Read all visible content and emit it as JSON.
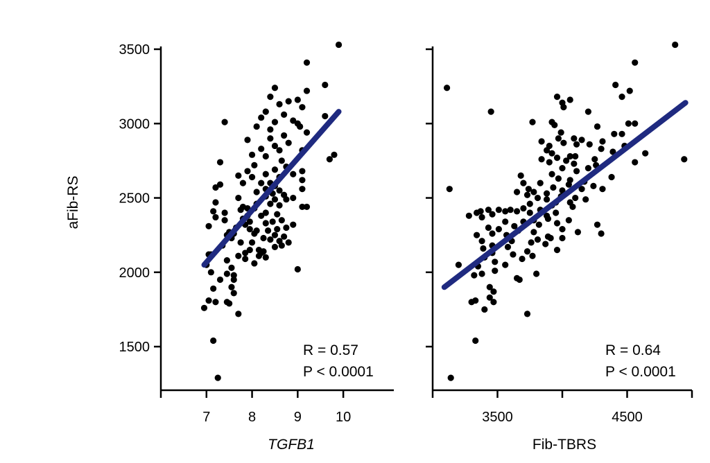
{
  "colors": {
    "points": "#000000",
    "fit_line": "#1f2a80",
    "axes": "#000000",
    "background": "#ffffff"
  },
  "shared_ylabel": "aFib-RS",
  "chart_data": [
    {
      "type": "scatter",
      "xlabel": "TGFB1",
      "xlabel_italic": true,
      "ylabel": "aFib-RS",
      "xlim": [
        6.0,
        10.5
      ],
      "ylim": [
        1200,
        3500
      ],
      "xticks": [
        6,
        7,
        8,
        9,
        10
      ],
      "xtick_labels": [
        "",
        "7",
        "8",
        "9",
        "10"
      ],
      "yticks": [
        1500,
        2000,
        2500,
        3000,
        3500
      ],
      "ytick_labels": [
        "1500",
        "2000",
        "2500",
        "3000",
        "3500"
      ],
      "grid": false,
      "stats": {
        "r": "R = 0.57",
        "p": "P < 0.0001"
      },
      "fit_line": {
        "x": [
          6.95,
          9.9
        ],
        "y": [
          2050,
          3080
        ]
      },
      "points": [
        [
          9.9,
          3530
        ],
        [
          9.2,
          3410
        ],
        [
          9.6,
          3260
        ],
        [
          9.2,
          3220
        ],
        [
          8.5,
          3240
        ],
        [
          8.4,
          3180
        ],
        [
          8.8,
          3150
        ],
        [
          9.0,
          3160
        ],
        [
          9.1,
          3110
        ],
        [
          8.6,
          3130
        ],
        [
          8.7,
          3060
        ],
        [
          8.3,
          3080
        ],
        [
          7.4,
          3010
        ],
        [
          8.2,
          3040
        ],
        [
          8.5,
          3010
        ],
        [
          8.9,
          3020
        ],
        [
          9.0,
          3000
        ],
        [
          9.6,
          3050
        ],
        [
          8.4,
          2960
        ],
        [
          8.1,
          2980
        ],
        [
          9.2,
          2940
        ],
        [
          9.05,
          2980
        ],
        [
          8.7,
          2920
        ],
        [
          7.9,
          2890
        ],
        [
          8.4,
          2900
        ],
        [
          8.8,
          2870
        ],
        [
          8.5,
          2850
        ],
        [
          8.2,
          2830
        ],
        [
          8.6,
          2820
        ],
        [
          9.1,
          2820
        ],
        [
          8.0,
          2790
        ],
        [
          8.3,
          2780
        ],
        [
          9.8,
          2790
        ],
        [
          9.7,
          2760
        ],
        [
          8.65,
          2750
        ],
        [
          7.3,
          2740
        ],
        [
          8.05,
          2720
        ],
        [
          8.75,
          2710
        ],
        [
          8.5,
          2690
        ],
        [
          9.1,
          2680
        ],
        [
          7.9,
          2680
        ],
        [
          8.3,
          2660
        ],
        [
          8.9,
          2660
        ],
        [
          7.7,
          2650
        ],
        [
          8.0,
          2640
        ],
        [
          8.6,
          2640
        ],
        [
          9.1,
          2620
        ],
        [
          8.2,
          2600
        ],
        [
          8.4,
          2600
        ],
        [
          7.8,
          2600
        ],
        [
          8.5,
          2580
        ],
        [
          8.3,
          2560
        ],
        [
          7.3,
          2590
        ],
        [
          7.2,
          2570
        ],
        [
          9.1,
          2560
        ],
        [
          8.6,
          2550
        ],
        [
          8.1,
          2540
        ],
        [
          8.45,
          2530
        ],
        [
          8.7,
          2520
        ],
        [
          8.3,
          2510
        ],
        [
          8.9,
          2500
        ],
        [
          8.5,
          2490
        ],
        [
          8.75,
          2490
        ],
        [
          7.7,
          2500
        ],
        [
          7.2,
          2470
        ],
        [
          8.1,
          2460
        ],
        [
          8.4,
          2460
        ],
        [
          8.6,
          2450
        ],
        [
          9.2,
          2440
        ],
        [
          9.1,
          2440
        ],
        [
          7.8,
          2440
        ],
        [
          7.9,
          2430
        ],
        [
          8.05,
          2430
        ],
        [
          7.75,
          2420
        ],
        [
          7.15,
          2410
        ],
        [
          7.4,
          2400
        ],
        [
          8.3,
          2400
        ],
        [
          8.55,
          2390
        ],
        [
          8.2,
          2380
        ],
        [
          7.9,
          2380
        ],
        [
          7.2,
          2370
        ],
        [
          7.8,
          2360
        ],
        [
          8.65,
          2350
        ],
        [
          7.4,
          2350
        ],
        [
          7.95,
          2340
        ],
        [
          8.45,
          2340
        ],
        [
          8.3,
          2330
        ],
        [
          7.85,
          2320
        ],
        [
          8.9,
          2320
        ],
        [
          7.05,
          2310
        ],
        [
          7.65,
          2300
        ],
        [
          8.75,
          2300
        ],
        [
          7.95,
          2290
        ],
        [
          8.55,
          2290
        ],
        [
          8.1,
          2280
        ],
        [
          8.35,
          2280
        ],
        [
          7.5,
          2270
        ],
        [
          7.6,
          2260
        ],
        [
          8.05,
          2260
        ],
        [
          7.45,
          2250
        ],
        [
          8.5,
          2250
        ],
        [
          8.7,
          2240
        ],
        [
          7.55,
          2230
        ],
        [
          8.25,
          2230
        ],
        [
          8.4,
          2220
        ],
        [
          8.6,
          2210
        ],
        [
          7.75,
          2200
        ],
        [
          8.0,
          2200
        ],
        [
          8.8,
          2200
        ],
        [
          7.35,
          2180
        ],
        [
          8.65,
          2180
        ],
        [
          8.5,
          2170
        ],
        [
          7.95,
          2150
        ],
        [
          8.15,
          2150
        ],
        [
          8.25,
          2140
        ],
        [
          7.85,
          2130
        ],
        [
          8.2,
          2130
        ],
        [
          7.05,
          2120
        ],
        [
          7.1,
          2120
        ],
        [
          7.7,
          2110
        ],
        [
          8.15,
          2110
        ],
        [
          8.3,
          2100
        ],
        [
          7.85,
          2090
        ],
        [
          7.45,
          2080
        ],
        [
          8.05,
          2060
        ],
        [
          7.0,
          2050
        ],
        [
          7.55,
          2030
        ],
        [
          9.0,
          2020
        ],
        [
          7.1,
          2000
        ],
        [
          7.45,
          1990
        ],
        [
          7.6,
          1980
        ],
        [
          7.3,
          1950
        ],
        [
          7.6,
          1950
        ],
        [
          7.15,
          1890
        ],
        [
          7.55,
          1900
        ],
        [
          7.05,
          1810
        ],
        [
          7.45,
          1800
        ],
        [
          7.5,
          1790
        ],
        [
          6.95,
          1760
        ],
        [
          7.7,
          1720
        ],
        [
          7.15,
          1540
        ],
        [
          7.25,
          1290
        ],
        [
          7.2,
          1800
        ],
        [
          7.6,
          1860
        ]
      ]
    },
    {
      "type": "scatter",
      "xlabel": "Fib-TBRS",
      "xlabel_italic": false,
      "ylabel": "",
      "xlim": [
        3000,
        5000
      ],
      "ylim": [
        1200,
        3500
      ],
      "xticks": [
        3000,
        3500,
        4000,
        4500,
        5000
      ],
      "xtick_labels": [
        "",
        "3500",
        "",
        "4500",
        ""
      ],
      "grid": false,
      "stats": {
        "r": "R = 0.64",
        "p": "P < 0.0001"
      },
      "fit_line": {
        "x": [
          3090,
          4950
        ],
        "y": [
          1900,
          3140
        ]
      },
      "points": [
        [
          4870,
          3530
        ],
        [
          4560,
          3410
        ],
        [
          4520,
          3220
        ],
        [
          4410,
          3260
        ],
        [
          4460,
          3180
        ],
        [
          3110,
          3240
        ],
        [
          3960,
          3180
        ],
        [
          4000,
          3140
        ],
        [
          4060,
          3160
        ],
        [
          4010,
          3110
        ],
        [
          4200,
          3080
        ],
        [
          3450,
          3080
        ],
        [
          3770,
          3010
        ],
        [
          3920,
          3010
        ],
        [
          3940,
          2990
        ],
        [
          4510,
          3000
        ],
        [
          4560,
          3000
        ],
        [
          4270,
          2980
        ],
        [
          3990,
          2940
        ],
        [
          3970,
          2900
        ],
        [
          4400,
          2930
        ],
        [
          4460,
          2930
        ],
        [
          4090,
          2900
        ],
        [
          4150,
          2890
        ],
        [
          4010,
          2870
        ],
        [
          4110,
          2860
        ],
        [
          4480,
          2850
        ],
        [
          4210,
          2860
        ],
        [
          4310,
          2880
        ],
        [
          3840,
          2880
        ],
        [
          3900,
          2850
        ],
        [
          4300,
          2830
        ],
        [
          3880,
          2820
        ],
        [
          3920,
          2800
        ],
        [
          4390,
          2810
        ],
        [
          4060,
          2780
        ],
        [
          4640,
          2800
        ],
        [
          4100,
          2780
        ],
        [
          3960,
          2770
        ],
        [
          4250,
          2760
        ],
        [
          3840,
          2760
        ],
        [
          4030,
          2750
        ],
        [
          3900,
          2740
        ],
        [
          4560,
          2740
        ],
        [
          4090,
          2730
        ],
        [
          4260,
          2720
        ],
        [
          4000,
          2700
        ],
        [
          4200,
          2700
        ],
        [
          3680,
          2650
        ],
        [
          4110,
          2680
        ],
        [
          3920,
          2660
        ],
        [
          4380,
          2640
        ],
        [
          3970,
          2630
        ],
        [
          4060,
          2620
        ],
        [
          3700,
          2600
        ],
        [
          3830,
          2600
        ],
        [
          4170,
          2610
        ],
        [
          4050,
          2590
        ],
        [
          4240,
          2580
        ],
        [
          3930,
          2570
        ],
        [
          3740,
          2560
        ],
        [
          4310,
          2560
        ],
        [
          4150,
          2560
        ],
        [
          4000,
          2550
        ],
        [
          3650,
          2540
        ],
        [
          3780,
          2540
        ],
        [
          3880,
          2530
        ],
        [
          3730,
          2520
        ],
        [
          3990,
          2510
        ],
        [
          4100,
          2500
        ],
        [
          3810,
          2500
        ],
        [
          3880,
          2490
        ],
        [
          4180,
          2490
        ],
        [
          3950,
          2470
        ],
        [
          4060,
          2470
        ],
        [
          3750,
          2460
        ],
        [
          3920,
          2450
        ],
        [
          4080,
          2440
        ],
        [
          3700,
          2430
        ],
        [
          3600,
          2420
        ],
        [
          3830,
          2420
        ],
        [
          3510,
          2420
        ],
        [
          3340,
          2400
        ],
        [
          3370,
          2410
        ],
        [
          3430,
          2420
        ],
        [
          3650,
          2410
        ],
        [
          3560,
          2410
        ],
        [
          3750,
          2400
        ],
        [
          3950,
          2400
        ],
        [
          3460,
          2390
        ],
        [
          3880,
          2380
        ],
        [
          3280,
          2380
        ],
        [
          3380,
          2370
        ],
        [
          3890,
          2360
        ],
        [
          3780,
          2350
        ],
        [
          4050,
          2350
        ],
        [
          3560,
          2340
        ],
        [
          3700,
          2340
        ],
        [
          3960,
          2330
        ],
        [
          3820,
          2320
        ],
        [
          3630,
          2310
        ],
        [
          3430,
          2300
        ],
        [
          3510,
          2290
        ],
        [
          4000,
          2290
        ],
        [
          3660,
          2280
        ],
        [
          3780,
          2270
        ],
        [
          4120,
          2270
        ],
        [
          3460,
          2260
        ],
        [
          3340,
          2250
        ],
        [
          3570,
          2250
        ],
        [
          3890,
          2240
        ],
        [
          3910,
          2230
        ],
        [
          4000,
          2230
        ],
        [
          3810,
          2220
        ],
        [
          3380,
          2210
        ],
        [
          3610,
          2210
        ],
        [
          3760,
          2200
        ],
        [
          3870,
          2190
        ],
        [
          3460,
          2180
        ],
        [
          3580,
          2170
        ],
        [
          3960,
          2150
        ],
        [
          3730,
          2140
        ],
        [
          3460,
          2130
        ],
        [
          3620,
          2120
        ],
        [
          3770,
          2110
        ],
        [
          3400,
          2100
        ],
        [
          3690,
          2090
        ],
        [
          3480,
          2070
        ],
        [
          3560,
          2050
        ],
        [
          3350,
          2040
        ],
        [
          3480,
          2010
        ],
        [
          3380,
          1990
        ],
        [
          3800,
          1990
        ],
        [
          3650,
          1960
        ],
        [
          3670,
          1950
        ],
        [
          3320,
          1980
        ],
        [
          3440,
          1900
        ],
        [
          3470,
          1870
        ],
        [
          3440,
          1830
        ],
        [
          3470,
          1800
        ],
        [
          3330,
          1810
        ],
        [
          3300,
          1800
        ],
        [
          3400,
          1750
        ],
        [
          3730,
          1720
        ],
        [
          3390,
          2160
        ],
        [
          3200,
          2050
        ],
        [
          3330,
          1540
        ],
        [
          3130,
          2560
        ],
        [
          3140,
          1290
        ],
        [
          4270,
          2320
        ],
        [
          4300,
          2260
        ],
        [
          4940,
          2760
        ]
      ]
    }
  ]
}
